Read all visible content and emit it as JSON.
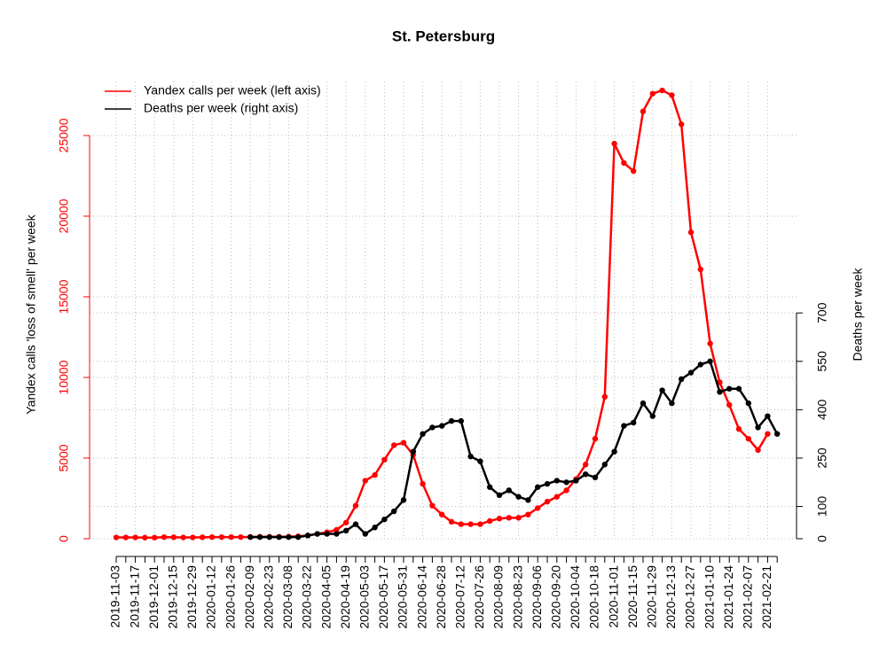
{
  "chart_data": {
    "type": "line",
    "title": "St. Petersburg",
    "x": [
      "2019-11-03",
      null,
      "2019-11-17",
      null,
      "2019-12-01",
      null,
      "2019-12-15",
      null,
      "2019-12-29",
      null,
      "2020-01-12",
      null,
      "2020-01-26",
      null,
      "2020-02-09",
      null,
      "2020-02-23",
      null,
      "2020-03-08",
      null,
      "2020-03-22",
      null,
      "2020-04-05",
      null,
      "2020-04-19",
      null,
      "2020-05-03",
      null,
      "2020-05-17",
      null,
      "2020-05-31",
      null,
      "2020-06-14",
      null,
      "2020-06-28",
      null,
      "2020-07-12",
      null,
      "2020-07-26",
      null,
      "2020-08-09",
      null,
      "2020-08-23",
      null,
      "2020-09-06",
      null,
      "2020-09-20",
      null,
      "2020-10-04",
      null,
      "2020-10-18",
      null,
      "2020-11-01",
      null,
      "2020-11-15",
      null,
      "2020-11-29",
      null,
      "2020-12-13",
      null,
      "2020-12-27",
      null,
      "2021-01-10",
      null,
      "2021-01-24",
      null,
      "2021-02-07",
      null,
      "2021-02-21",
      null
    ],
    "series": [
      {
        "name": "Yandex calls per week (left axis)",
        "color": "#ff0000",
        "axis": "y",
        "values": [
          80,
          80,
          80,
          70,
          70,
          100,
          90,
          80,
          80,
          90,
          100,
          100,
          100,
          100,
          110,
          120,
          120,
          120,
          130,
          150,
          200,
          300,
          400,
          550,
          1000,
          2050,
          3600,
          3950,
          4900,
          5800,
          5950,
          5200,
          3400,
          2050,
          1500,
          1050,
          900,
          900,
          900,
          1100,
          1250,
          1300,
          1300,
          1500,
          1900,
          2300,
          2600,
          3000,
          3700,
          4600,
          6200,
          8800,
          24500,
          23300,
          22800,
          26500,
          27600,
          27800,
          27500,
          25700,
          19000,
          16700,
          12100,
          9700,
          8300,
          6800,
          6200,
          5500,
          6500,
          null
        ]
      },
      {
        "name": "Deaths per week (right axis)",
        "color": "#000000",
        "axis": "y2",
        "values": [
          null,
          null,
          null,
          null,
          null,
          null,
          null,
          null,
          null,
          null,
          null,
          null,
          null,
          null,
          5,
          5,
          5,
          5,
          5,
          5,
          10,
          15,
          15,
          15,
          25,
          45,
          15,
          35,
          60,
          85,
          120,
          270,
          325,
          345,
          350,
          365,
          365,
          255,
          240,
          160,
          135,
          150,
          130,
          120,
          160,
          170,
          180,
          175,
          180,
          200,
          190,
          230,
          270,
          350,
          360,
          420,
          380,
          460,
          420,
          495,
          515,
          540,
          550,
          455,
          465,
          465,
          420,
          345,
          380,
          325
        ]
      }
    ],
    "ylabel": "Yandex calls 'loss of smell' per week",
    "y2label": "Deaths per week",
    "ylim": [
      -1100,
      28900
    ],
    "yticks": [
      0,
      5000,
      10000,
      15000,
      20000,
      25000
    ],
    "y2lim": [
      -55,
      1445
    ],
    "y2ticks": [
      0,
      100,
      250,
      400,
      550,
      700
    ],
    "grid": true,
    "legend": "top-left"
  }
}
